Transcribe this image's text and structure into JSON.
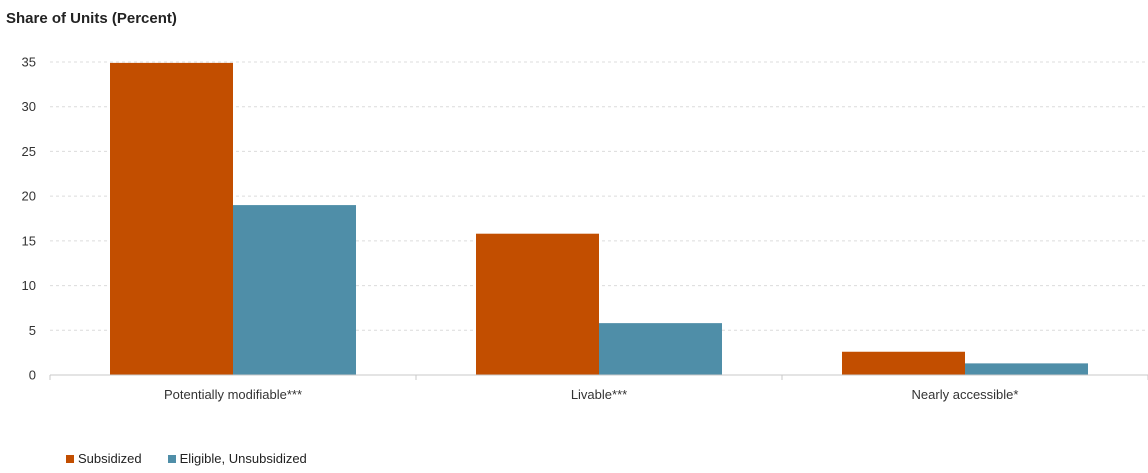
{
  "chart_data": {
    "type": "bar",
    "title": "Share of Units (Percent)",
    "xlabel": "",
    "ylabel": "",
    "categories": [
      "Potentially modifiable***",
      "Livable***",
      "Nearly accessible*"
    ],
    "series": [
      {
        "name": "Subsidized",
        "color": "#c24e00",
        "values": [
          34.9,
          15.8,
          2.6
        ]
      },
      {
        "name": "Eligible, Unsubsidized",
        "color": "#4f8ea8",
        "values": [
          19.0,
          5.8,
          1.3
        ]
      }
    ],
    "ylim": [
      0,
      35
    ],
    "yticks": [
      "0",
      "5",
      "10",
      "15",
      "20",
      "25",
      "30",
      "35"
    ],
    "grid": true,
    "legend_position": "bottom-left"
  }
}
